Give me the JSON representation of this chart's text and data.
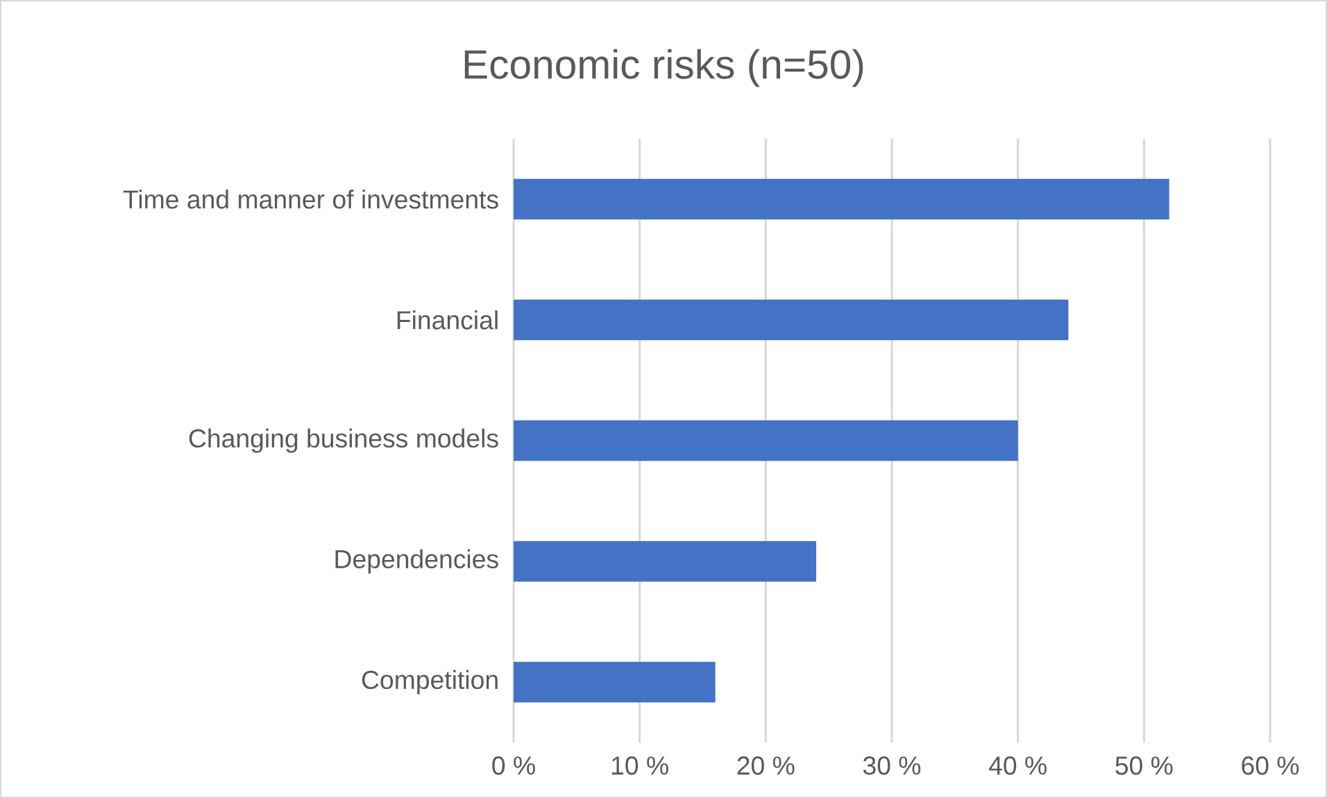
{
  "chart_data": {
    "type": "bar",
    "orientation": "horizontal",
    "title": "Economic risks (n=50)",
    "categories": [
      "Time and manner of investments",
      "Financial",
      "Changing business models",
      "Dependencies",
      "Competition"
    ],
    "values": [
      52,
      44,
      40,
      24,
      16
    ],
    "color": "#4472c4",
    "xlim": [
      0,
      60
    ],
    "xticks": [
      {
        "value": 0,
        "label": "0 %"
      },
      {
        "value": 10,
        "label": "10 %"
      },
      {
        "value": 20,
        "label": "20 %"
      },
      {
        "value": 30,
        "label": "30 %"
      },
      {
        "value": 40,
        "label": "40 %"
      },
      {
        "value": 50,
        "label": "50 %"
      },
      {
        "value": 60,
        "label": "60 %"
      }
    ],
    "grid": "x"
  }
}
